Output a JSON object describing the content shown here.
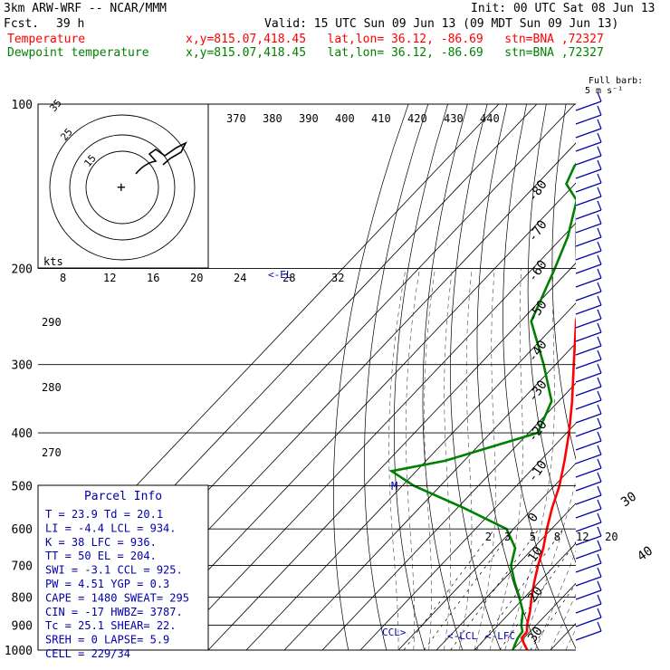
{
  "header": {
    "model": "3km ARW-WRF -- NCAR/MMM",
    "init": "Init: 00 UTC Sat 08 Jun 13",
    "fcst_label": "Fcst.",
    "fcst_value": "39 h",
    "valid": "Valid: 15 UTC Sun 09 Jun 13 (09 MDT Sun 09 Jun 13)",
    "temp_label": "Temperature",
    "dew_label": "Dewpoint temperature",
    "location": "x,y=815.07,418.45   lat,lon= 36.12, -86.69   stn=BNA ,72327"
  },
  "colors": {
    "temperature": "#ff0000",
    "dewpoint": "#008000",
    "parcel_box_text": "#0000aa",
    "wind": "#0000aa"
  },
  "barb_key": {
    "line1": "Full barb:",
    "line2": "5 m s⁻¹"
  },
  "hodograph": {
    "units": "kts",
    "ring_labels": [
      "15",
      "25",
      "35"
    ],
    "speed_ticks": [
      "8",
      "12",
      "16",
      "20",
      "24",
      "28",
      "32"
    ]
  },
  "potential_temp_labels": [
    "370",
    "380",
    "390",
    "400",
    "410",
    "420",
    "430",
    "440"
  ],
  "theta_side_labels": [
    "290",
    "280",
    "270"
  ],
  "mixing_ratio_labels": [
    "2",
    "3",
    "5",
    "8",
    "12",
    "20"
  ],
  "parcel_markers": {
    "ccl": "CCL",
    "lcl": "LCL",
    "lfc": "<-LFC",
    "el": "<-EL",
    "m": "M"
  },
  "parcel_info": {
    "title": "Parcel Info",
    "rows": [
      "T  =   23.9  Td =  20.1",
      "LI =   -4.4  LCL =  934.",
      "K  =    38  LFC =  936.",
      "TT =    50  EL  =  204.",
      "SWI =  -3.1  CCL =  925.",
      "PW =   4.51  YGP =   0.3",
      "CAPE =  1480  SWEAT=  295",
      "CIN  =   -17  HWBZ= 3787.",
      "Tc  =  25.1  SHEAR=  22.",
      "SREH =    0  LAPSE=  5.9",
      "CELL = 229/34"
    ]
  },
  "chart_data": {
    "type": "line",
    "title": "",
    "xlabel": "",
    "ylabel": "",
    "y_scale": "log-pressure",
    "pressure_levels": [
      1000,
      900,
      800,
      700,
      600,
      500,
      400,
      300,
      200,
      100
    ],
    "isotherm_labels": [
      -80,
      -70,
      -60,
      -50,
      -40,
      -30,
      -20,
      -10,
      0,
      10,
      20,
      30,
      40
    ],
    "series": [
      {
        "name": "Temperature",
        "points": [
          {
            "p": 1000,
            "t": 23.9
          },
          {
            "p": 975,
            "t": 21.6
          },
          {
            "p": 950,
            "t": 19.4
          },
          {
            "p": 925,
            "t": 19.2
          },
          {
            "p": 900,
            "t": 17.6
          },
          {
            "p": 850,
            "t": 15.0
          },
          {
            "p": 800,
            "t": 11.8
          },
          {
            "p": 750,
            "t": 8.7
          },
          {
            "p": 700,
            "t": 5.6
          },
          {
            "p": 650,
            "t": 2.6
          },
          {
            "p": 600,
            "t": -1.2
          },
          {
            "p": 550,
            "t": -5.0
          },
          {
            "p": 500,
            "t": -8.7
          },
          {
            "p": 450,
            "t": -13.6
          },
          {
            "p": 400,
            "t": -19.4
          },
          {
            "p": 350,
            "t": -26.5
          },
          {
            "p": 300,
            "t": -35.2
          },
          {
            "p": 250,
            "t": -45.4
          },
          {
            "p": 200,
            "t": -55.9
          },
          {
            "p": 175,
            "t": -59.1
          },
          {
            "p": 150,
            "t": -63.6
          },
          {
            "p": 125,
            "t": -65.2
          },
          {
            "p": 110,
            "t": -68.7
          },
          {
            "p": 100,
            "t": -71.5
          }
        ]
      },
      {
        "name": "Dewpoint temperature",
        "points": [
          {
            "p": 1000,
            "t": 20.1
          },
          {
            "p": 975,
            "t": 19.2
          },
          {
            "p": 950,
            "t": 18.4
          },
          {
            "p": 925,
            "t": 18.0
          },
          {
            "p": 900,
            "t": 16.1
          },
          {
            "p": 850,
            "t": 13.1
          },
          {
            "p": 800,
            "t": 8.6
          },
          {
            "p": 750,
            "t": 3.5
          },
          {
            "p": 700,
            "t": -1.5
          },
          {
            "p": 650,
            "t": -4.8
          },
          {
            "p": 600,
            "t": -11.8
          },
          {
            "p": 550,
            "t": -28.0
          },
          {
            "p": 500,
            "t": -47.0
          },
          {
            "p": 470,
            "t": -56.5
          },
          {
            "p": 450,
            "t": -45.0
          },
          {
            "p": 400,
            "t": -27.6
          },
          {
            "p": 350,
            "t": -31.9
          },
          {
            "p": 300,
            "t": -43.1
          },
          {
            "p": 250,
            "t": -57.2
          },
          {
            "p": 200,
            "t": -64.2
          },
          {
            "p": 175,
            "t": -68.7
          },
          {
            "p": 150,
            "t": -75.5
          },
          {
            "p": 140,
            "t": -82.3
          },
          {
            "p": 130,
            "t": -84.6
          },
          {
            "p": 120,
            "t": -85.5
          },
          {
            "p": 110,
            "t": -87.0
          },
          {
            "p": 100,
            "t": -90.0
          }
        ]
      }
    ]
  }
}
